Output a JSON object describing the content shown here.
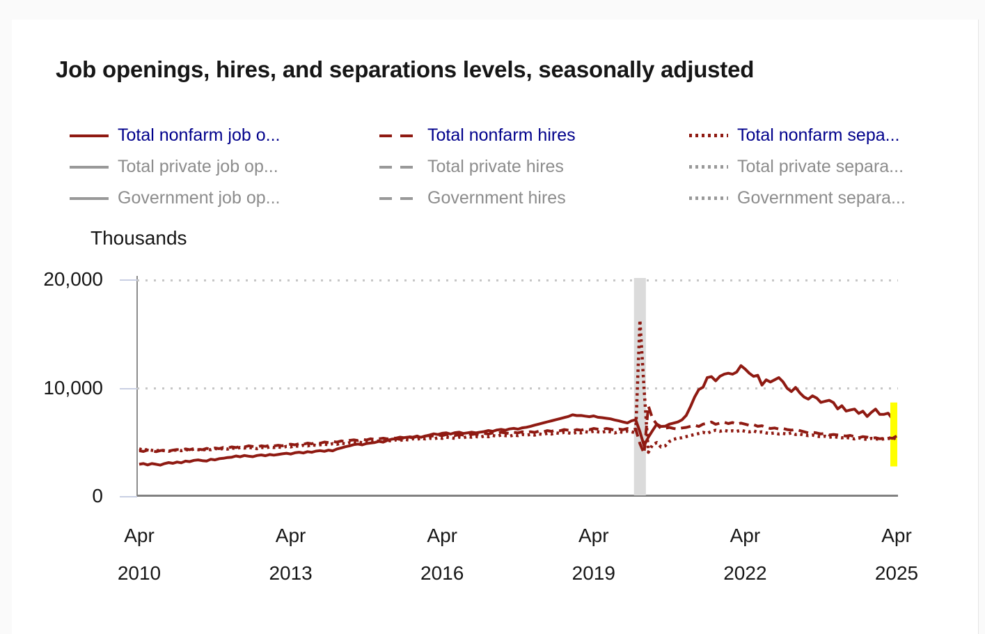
{
  "title": "Job openings, hires, and separations levels, seasonally adjusted",
  "colors": {
    "series_red": "#8f1a12",
    "legend_active_text": "#00008b",
    "legend_inactive_line": "#999999",
    "legend_inactive_text": "#8c8c8c",
    "gridline": "#c6c6c6",
    "axis": "#808080",
    "recession_band": "#dbdbdb",
    "highlight_yellow": "#ffff00",
    "page_background": "#fafafa",
    "card_background": "#ffffff"
  },
  "legend": {
    "columns": [
      {
        "items": [
          {
            "label": "Total nonfarm job o...",
            "style": "solid",
            "active": true
          },
          {
            "label": "Total private job op...",
            "style": "solid",
            "active": false
          },
          {
            "label": "Government job op...",
            "style": "solid",
            "active": false
          }
        ]
      },
      {
        "items": [
          {
            "label": "Total nonfarm hires",
            "style": "dashed",
            "active": true
          },
          {
            "label": "Total private hires",
            "style": "dashed",
            "active": false
          },
          {
            "label": "Government hires",
            "style": "dashed",
            "active": false
          }
        ]
      },
      {
        "items": [
          {
            "label": "Total nonfarm sepa...",
            "style": "dotted",
            "active": true
          },
          {
            "label": "Total private separa...",
            "style": "dotted",
            "active": false
          },
          {
            "label": "Government separa...",
            "style": "dotted",
            "active": false
          }
        ]
      }
    ]
  },
  "chart_data": {
    "type": "line",
    "title": "Job openings, hires, and separations levels, seasonally adjusted",
    "ylabel": "Thousands",
    "ylim": [
      0,
      20000
    ],
    "grid": "dotted-horizontal",
    "x_start": "2010-04",
    "x_end": "2025-04",
    "x_unit": "month",
    "yticks": [
      {
        "value": 0,
        "label": "0"
      },
      {
        "value": 10000,
        "label": "10,000"
      },
      {
        "value": 20000,
        "label": "20,000"
      }
    ],
    "xticks": [
      {
        "top": "Apr",
        "bottom": "2010"
      },
      {
        "top": "Apr",
        "bottom": "2013"
      },
      {
        "top": "Apr",
        "bottom": "2016"
      },
      {
        "top": "Apr",
        "bottom": "2019"
      },
      {
        "top": "Apr",
        "bottom": "2022"
      },
      {
        "top": "Apr",
        "bottom": "2025"
      }
    ],
    "xtick_interval_months": 36,
    "recession_band": {
      "from": "2020-02",
      "to": "2020-04"
    },
    "latest_highlight": {
      "color": "#ffff00",
      "value_range": [
        2800,
        8700
      ]
    },
    "series": [
      {
        "name": "Total nonfarm job openings",
        "style": "solid",
        "values": [
          3000,
          3060,
          2940,
          3060,
          3000,
          2920,
          3060,
          3150,
          3090,
          3200,
          3130,
          3290,
          3240,
          3360,
          3400,
          3330,
          3290,
          3460,
          3400,
          3510,
          3550,
          3620,
          3650,
          3760,
          3690,
          3810,
          3740,
          3700,
          3810,
          3860,
          3790,
          3900,
          3840,
          3900,
          3960,
          4010,
          3940,
          4060,
          4110,
          4040,
          4160,
          4100,
          4210,
          4260,
          4190,
          4300,
          4240,
          4410,
          4510,
          4620,
          4700,
          4810,
          4860,
          4790,
          4910,
          4960,
          5010,
          5110,
          5040,
          5210,
          5310,
          5360,
          5290,
          5460,
          5510,
          5440,
          5560,
          5490,
          5610,
          5700,
          5810,
          5740,
          5860,
          5900,
          5790,
          5910,
          5960,
          5840,
          5900,
          5960,
          5890,
          5960,
          6010,
          6110,
          6040,
          6160,
          6210,
          6140,
          6260,
          6310,
          6240,
          6360,
          6410,
          6500,
          6610,
          6710,
          6810,
          6910,
          7010,
          7110,
          7210,
          7310,
          7410,
          7560,
          7490,
          7500,
          7440,
          7390,
          7460,
          7340,
          7300,
          7240,
          7190,
          7090,
          7000,
          6900,
          6810,
          7010,
          7110,
          6000,
          4700,
          5500,
          6100,
          6700,
          6490,
          6510,
          6700,
          6800,
          6900,
          7100,
          7510,
          8300,
          9210,
          9900,
          10110,
          11000,
          11090,
          10700,
          11110,
          11310,
          11400,
          11310,
          11510,
          12100,
          11790,
          11400,
          11110,
          11210,
          10310,
          10790,
          10590,
          10790,
          11000,
          10610,
          10010,
          9710,
          10090,
          9590,
          9210,
          9010,
          9310,
          9110,
          8710,
          8810,
          8900,
          8690,
          8110,
          8400,
          7910,
          8010,
          8090,
          7690,
          7900,
          7410,
          7790,
          8090,
          7600,
          7610,
          7710,
          7190,
          7400
        ]
      },
      {
        "name": "Total nonfarm hires",
        "style": "dashed",
        "values": [
          4250,
          4180,
          4310,
          4240,
          4160,
          4260,
          4310,
          4210,
          4300,
          4360,
          4300,
          4410,
          4340,
          4450,
          4400,
          4340,
          4460,
          4400,
          4500,
          4440,
          4550,
          4510,
          4600,
          4540,
          4650,
          4600,
          4700,
          4640,
          4590,
          4700,
          4650,
          4750,
          4690,
          4750,
          4700,
          4800,
          4850,
          4790,
          4900,
          4840,
          4950,
          4890,
          5000,
          4940,
          5050,
          5000,
          5100,
          5040,
          5150,
          5100,
          5200,
          5250,
          5190,
          5300,
          5240,
          5350,
          5290,
          5350,
          5400,
          5340,
          5450,
          5400,
          5500,
          5440,
          5550,
          5490,
          5600,
          5540,
          5600,
          5650,
          5590,
          5700,
          5640,
          5750,
          5690,
          5640,
          5750,
          5700,
          5800,
          5740,
          5800,
          5750,
          5850,
          5790,
          5900,
          5840,
          5950,
          5890,
          5840,
          5950,
          5900,
          6000,
          5940,
          6000,
          5940,
          6050,
          5990,
          6100,
          6040,
          6150,
          6090,
          6200,
          6140,
          6090,
          6200,
          6140,
          6250,
          6190,
          6300,
          6240,
          6190,
          6300,
          6240,
          6140,
          6250,
          6190,
          6300,
          6200,
          6250,
          4900,
          4000,
          8400,
          7200,
          6700,
          6300,
          6320,
          6400,
          6300,
          6250,
          6350,
          6400,
          6500,
          6600,
          6490,
          6700,
          6800,
          6900,
          6690,
          6800,
          6890,
          6750,
          6850,
          6690,
          6800,
          6700,
          6590,
          6650,
          6500,
          6550,
          6400,
          6300,
          6350,
          6250,
          6300,
          6200,
          6150,
          6210,
          6100,
          6000,
          5900,
          5950,
          5890,
          5800,
          5850,
          5700,
          5750,
          5700,
          5650,
          5600,
          5660,
          5550,
          5450,
          5550,
          5500,
          5400,
          5450,
          5350,
          5400,
          5460,
          5390,
          5600
        ]
      },
      {
        "name": "Total nonfarm separations",
        "style": "dotted",
        "values": [
          4420,
          4300,
          4360,
          4290,
          4240,
          4310,
          4250,
          4190,
          4290,
          4310,
          4250,
          4360,
          4300,
          4400,
          4350,
          4290,
          4400,
          4340,
          4450,
          4390,
          4450,
          4400,
          4500,
          4440,
          4550,
          4490,
          4550,
          4500,
          4440,
          4550,
          4500,
          4600,
          4540,
          4600,
          4540,
          4650,
          4600,
          4700,
          4640,
          4750,
          4690,
          4800,
          4740,
          4800,
          4850,
          4800,
          4900,
          4840,
          4950,
          4890,
          5000,
          4940,
          5050,
          4990,
          5100,
          5040,
          5100,
          5150,
          5090,
          5200,
          5140,
          5250,
          5190,
          5300,
          5240,
          5350,
          5290,
          5400,
          5340,
          5400,
          5340,
          5450,
          5390,
          5500,
          5440,
          5390,
          5500,
          5440,
          5550,
          5490,
          5550,
          5500,
          5600,
          5540,
          5650,
          5590,
          5700,
          5640,
          5590,
          5700,
          5640,
          5750,
          5690,
          5750,
          5690,
          5800,
          5740,
          5850,
          5790,
          5900,
          5840,
          5950,
          5890,
          5840,
          5950,
          5890,
          6000,
          5940,
          6050,
          5990,
          5940,
          6050,
          5990,
          5890,
          6000,
          5940,
          6050,
          6000,
          5900,
          16300,
          9900,
          4100,
          4800,
          5000,
          4600,
          4700,
          5100,
          5300,
          5400,
          5450,
          5550,
          5650,
          5740,
          5840,
          5940,
          5840,
          6040,
          6140,
          6040,
          6140,
          6040,
          6090,
          6040,
          6140,
          6040,
          5990,
          6090,
          5940,
          5990,
          5890,
          5840,
          5890,
          5790,
          5840,
          5790,
          5890,
          5740,
          5790,
          5690,
          5640,
          5690,
          5590,
          5540,
          5590,
          5490,
          5540,
          5490,
          5440,
          5490,
          5390,
          5340,
          5440,
          5340,
          5290,
          5390,
          5340,
          5290,
          5340,
          5390,
          5290,
          5500
        ]
      }
    ]
  }
}
